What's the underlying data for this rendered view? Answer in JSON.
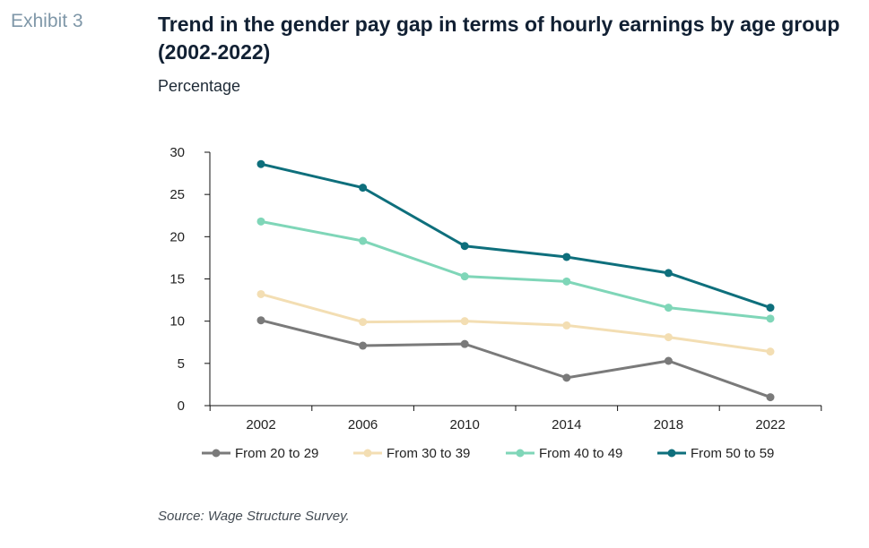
{
  "exhibit_label": "Exhibit 3",
  "source": "Source: Wage Structure Survey.",
  "chart_data": {
    "type": "line",
    "title": "Trend in the gender pay gap in terms of hourly earnings by age group (2002-2022)",
    "subtitle": "Percentage",
    "x": [
      "2002",
      "2006",
      "2010",
      "2014",
      "2018",
      "2022"
    ],
    "ylim": [
      0,
      30
    ],
    "yticks": [
      0,
      5,
      10,
      15,
      20,
      25,
      30
    ],
    "grid": false,
    "legend_position": "bottom",
    "series": [
      {
        "name": "From 20 to 29",
        "color": "#7a7a7a",
        "values": [
          10.1,
          7.1,
          7.3,
          3.3,
          5.3,
          1.0
        ]
      },
      {
        "name": "From 30 to 39",
        "color": "#f3deb3",
        "values": [
          13.2,
          9.9,
          10.0,
          9.5,
          8.1,
          6.4
        ]
      },
      {
        "name": "From 40 to 49",
        "color": "#7fd6b8",
        "values": [
          21.8,
          19.5,
          15.3,
          14.7,
          11.6,
          10.3
        ]
      },
      {
        "name": "From 50 to 59",
        "color": "#0e6f7c",
        "values": [
          28.6,
          25.8,
          18.9,
          17.6,
          15.7,
          11.6
        ]
      }
    ]
  }
}
